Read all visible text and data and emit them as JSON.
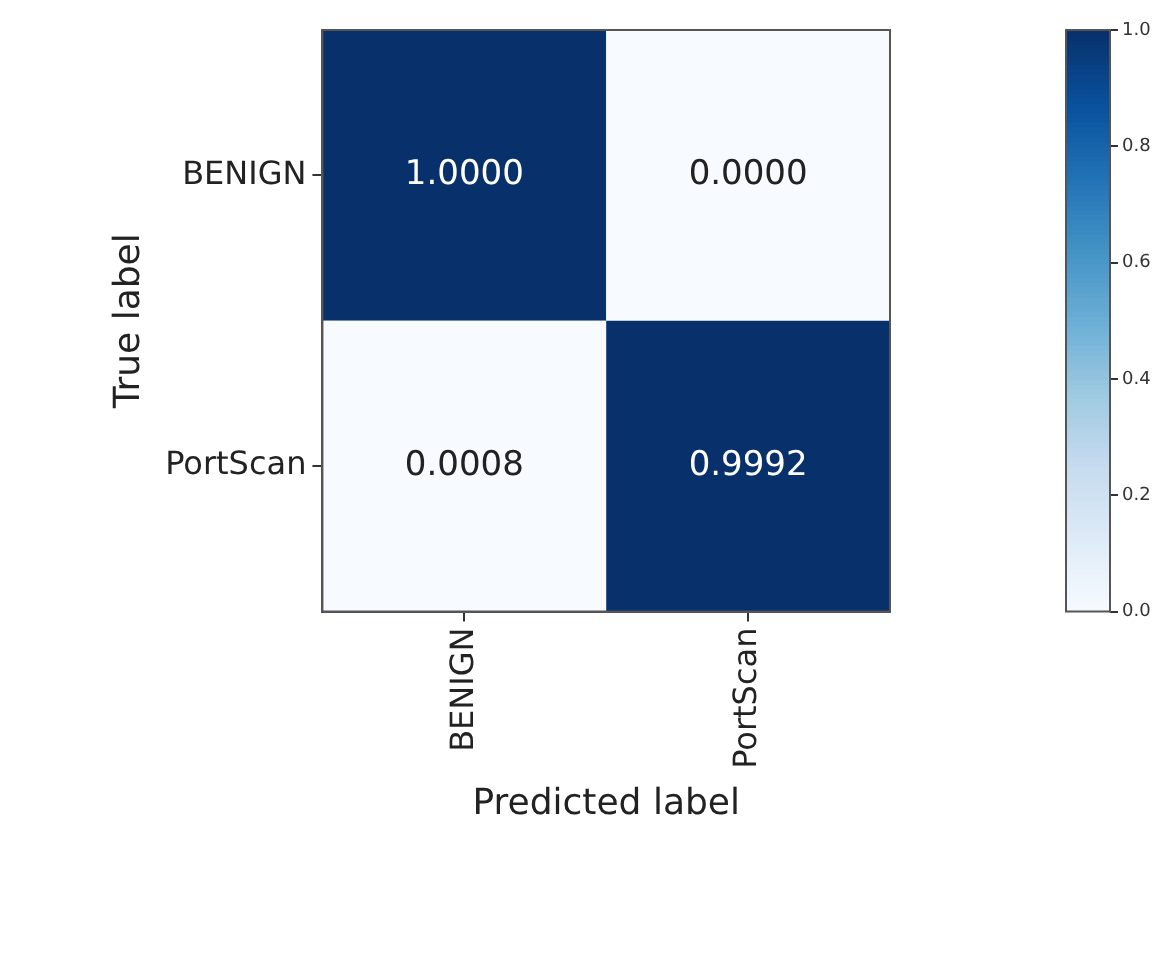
{
  "chart_data": {
    "type": "heatmap",
    "xlabel": "Predicted label",
    "ylabel": "True label",
    "categories": [
      "BENIGN",
      "PortScan"
    ],
    "y_categories": [
      "BENIGN",
      "PortScan"
    ],
    "cells": [
      [
        1.0,
        0.0
      ],
      [
        0.0008,
        0.9992
      ]
    ],
    "cell_labels": [
      [
        "1.0000",
        "0.0000"
      ],
      [
        "0.0008",
        "0.9992"
      ]
    ],
    "clim": [
      0,
      1
    ],
    "cticks": [
      {
        "value": 0,
        "label": "0.0"
      },
      {
        "value": 0.2,
        "label": "0.2"
      },
      {
        "value": 0.4,
        "label": "0.4"
      },
      {
        "value": 0.6,
        "label": "0.6"
      },
      {
        "value": 0.8,
        "label": "0.8"
      },
      {
        "value": 1,
        "label": "1.0"
      }
    ]
  }
}
